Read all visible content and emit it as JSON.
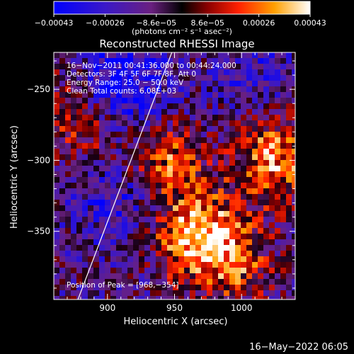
{
  "chart_data": {
    "type": "heatmap",
    "title": "Reconstructed RHESSI Image",
    "xlabel": "Heliocentric X (arcsec)",
    "ylabel": "Heliocentric Y (arcsec)",
    "xlim": [
      860,
      1040
    ],
    "ylim": [
      -398,
      -224
    ],
    "x_ticks": [
      {
        "value": 900,
        "label": "900"
      },
      {
        "value": 950,
        "label": "950"
      },
      {
        "value": 1000,
        "label": "1000"
      }
    ],
    "y_ticks": [
      {
        "value": -250,
        "label": "−250"
      },
      {
        "value": -300,
        "label": "−300"
      },
      {
        "value": -350,
        "label": "−350"
      }
    ],
    "colorbar": {
      "min": -0.00043,
      "max": 0.00043,
      "tick_labels": [
        "−0.00043",
        "−0.00026",
        "−8.6e−05",
        "8.6e−05",
        "0.00026",
        "0.00043"
      ],
      "unit_label": "(photons cm⁻² s⁻¹ asec⁻²)"
    },
    "annotations": [
      "16−Nov−2011 00:41:36.000 to 00:44:24.000",
      "Detectors: 3F 4F 5F 6F 7F 8F, Att 0",
      "Energy Range: 25.0 − 50.0 keV",
      "Clean    Total counts: 6.08E+03",
      "Position of Peak = [968,−354]"
    ],
    "limb_line": {
      "x1": 878,
      "y1": -398,
      "x2": 948,
      "y2": -224
    },
    "peak": {
      "x": 968,
      "y": -354
    },
    "grid": false
  },
  "footer_timestamp": "16−May−2022 06:05"
}
